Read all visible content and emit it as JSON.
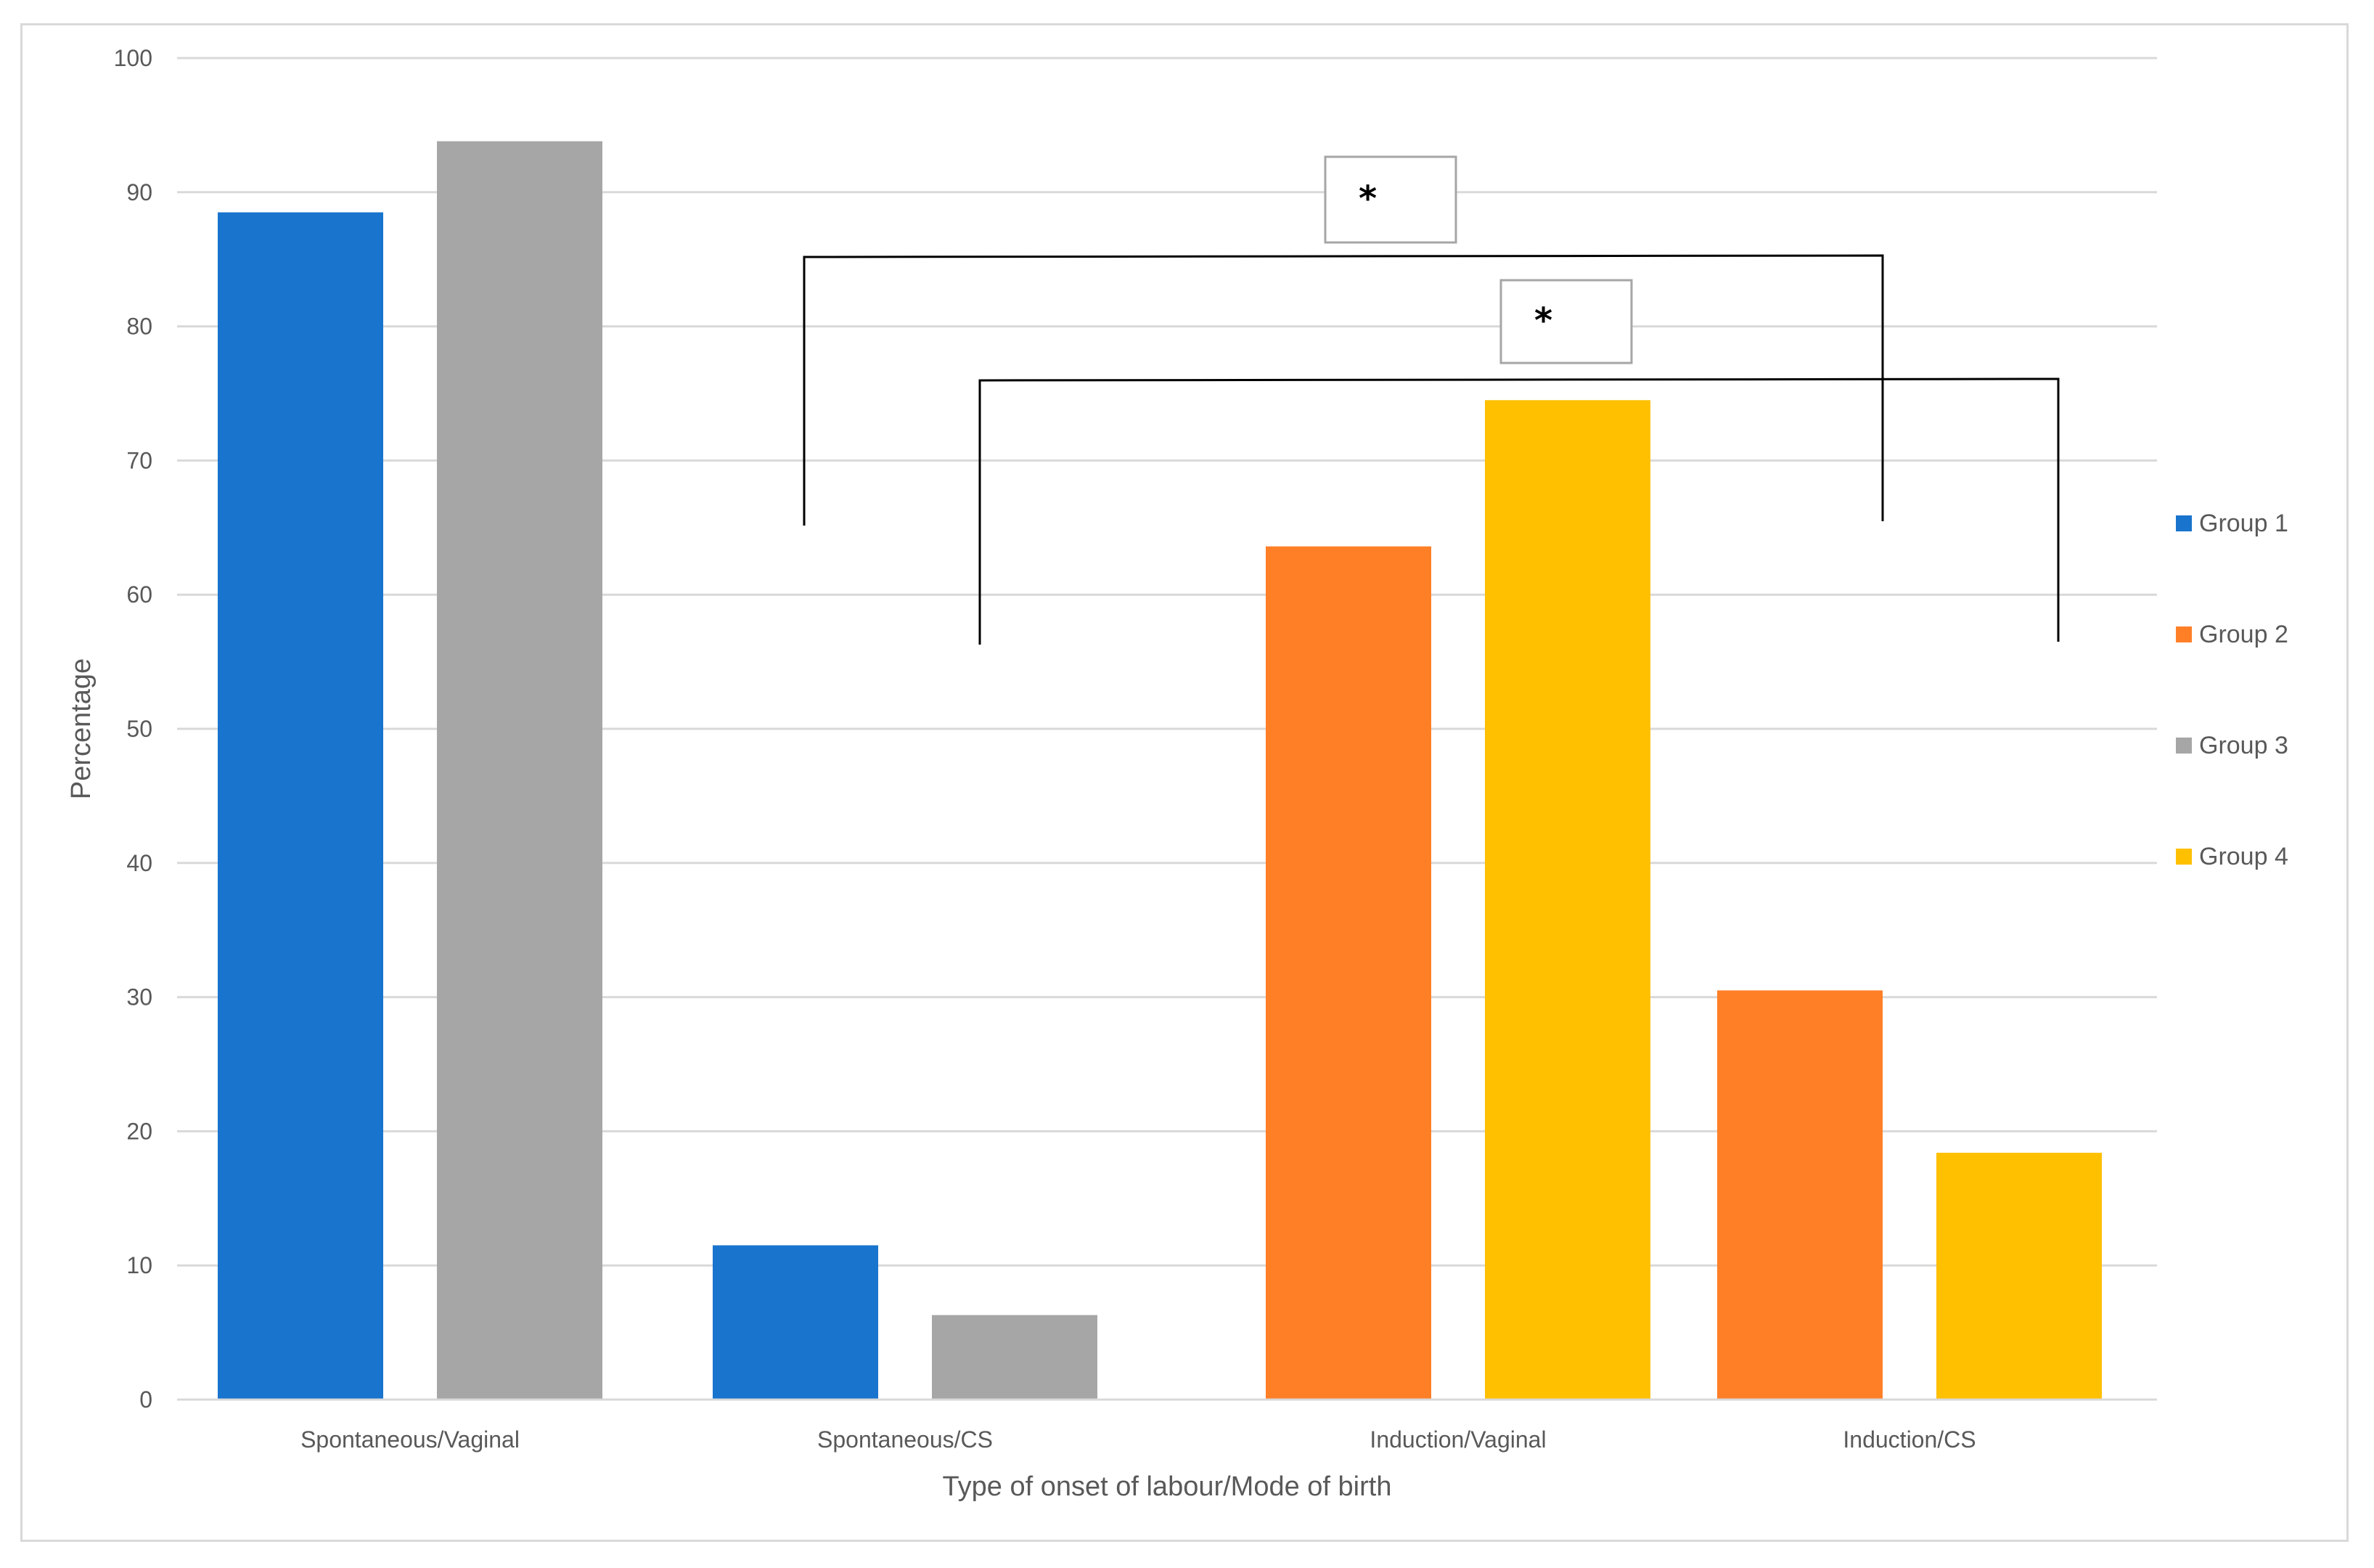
{
  "chart_data": {
    "type": "bar",
    "categories": [
      "Spontaneous/Vaginal",
      "Spontaneous/CS",
      "Induction/Vaginal",
      "Induction/CS"
    ],
    "series": [
      {
        "name": "Group 1",
        "color": "#1874cd",
        "values": [
          88.5,
          11.5,
          null,
          null
        ]
      },
      {
        "name": "Group 2",
        "color": "#ff7f27",
        "values": [
          null,
          null,
          63.6,
          30.5
        ]
      },
      {
        "name": "Group 3",
        "color": "#a6a6a6",
        "values": [
          93.8,
          6.3,
          null,
          null
        ]
      },
      {
        "name": "Group 4",
        "color": "#ffc000",
        "values": [
          null,
          null,
          74.5,
          18.4
        ]
      }
    ],
    "xlabel": "Type of onset of labour/Mode of birth",
    "ylabel": "Percentage",
    "ylim": [
      0,
      100
    ],
    "yticks": [
      0,
      10,
      20,
      30,
      40,
      50,
      60,
      70,
      80,
      90,
      100
    ],
    "grid": true,
    "legend": "right",
    "annotations": [
      {
        "label": "*",
        "from_category": "Spontaneous/Vaginal",
        "to_category": "Induction/Vaginal",
        "type": "significance-bracket"
      },
      {
        "label": "*",
        "from_category": "Spontaneous/CS",
        "to_category": "Induction/CS",
        "type": "significance-bracket"
      }
    ]
  }
}
